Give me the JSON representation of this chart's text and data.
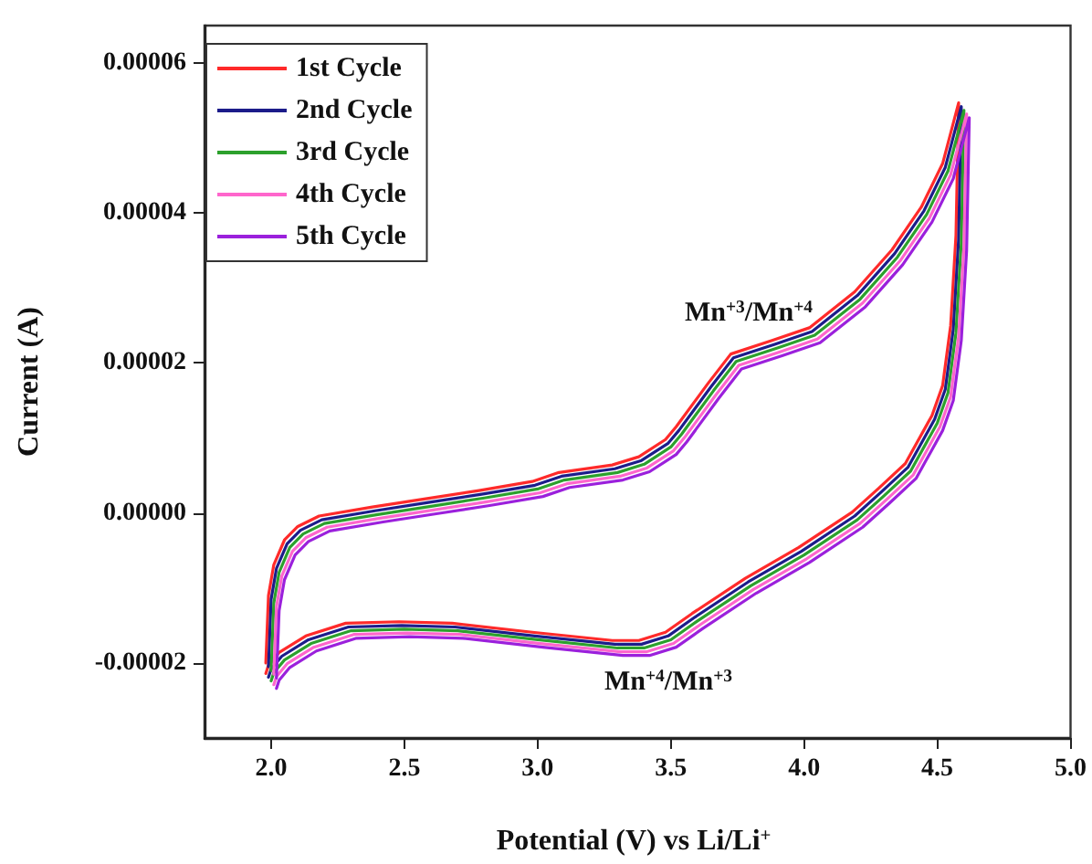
{
  "chart_data": {
    "type": "line",
    "xlabel": "Potential (V) vs Li/Li$^{+}$",
    "ylabel": "Current (A)",
    "xlim": [
      1.75,
      5.0
    ],
    "ylim": [
      -3e-05,
      6.5e-05
    ],
    "xticks": [
      {
        "value": 2.0,
        "label": "2.0"
      },
      {
        "value": 2.5,
        "label": "2.5"
      },
      {
        "value": 3.0,
        "label": "3.0"
      },
      {
        "value": 3.5,
        "label": "3.5"
      },
      {
        "value": 4.0,
        "label": "4.0"
      },
      {
        "value": 4.5,
        "label": "4.5"
      },
      {
        "value": 5.0,
        "label": "5.0"
      }
    ],
    "yticks": [
      {
        "value": -2e-05,
        "label": "-0.00002"
      },
      {
        "value": 0,
        "label": "0.00000"
      },
      {
        "value": 2e-05,
        "label": "0.00002"
      },
      {
        "value": 4e-05,
        "label": "0.00004"
      },
      {
        "value": 6e-05,
        "label": "0.00006"
      }
    ],
    "grid": false,
    "legend": "top left",
    "marker": "none",
    "line_style": "solid",
    "annotations": [
      "Mn$^{+3}$/Mn$^{+4}$",
      "Mn$^{+4}$/Mn$^{+3}$"
    ],
    "series": [
      {
        "name": "1st Cycle",
        "color": "#ff2a2a",
        "x": [
          1.98,
          1.99,
          2.01,
          2.05,
          2.1,
          2.18,
          2.38,
          2.58,
          2.78,
          2.98,
          3.08,
          3.28,
          3.38,
          3.48,
          3.52,
          3.64,
          3.725,
          3.88,
          4.02,
          4.19,
          4.33,
          4.44,
          4.52,
          4.58,
          4.57,
          4.55,
          4.52,
          4.48,
          4.38,
          4.28,
          4.18,
          3.98,
          3.78,
          3.58,
          3.48,
          3.38,
          3.28,
          2.98,
          2.68,
          2.48,
          2.28,
          2.13,
          2.03,
          1.99,
          1.98
        ],
        "values": [
          -2e-05,
          -1.1e-05,
          -6.9e-06,
          -3.6e-06,
          -1.8e-06,
          -4e-07,
          8e-07,
          1.9e-06,
          3e-06,
          4.2e-06,
          5.4e-06,
          6.4e-06,
          7.5e-06,
          9.8e-06,
          1.15e-05,
          1.73e-05,
          2.12e-05,
          2.3e-05,
          2.47e-05,
          2.95e-05,
          3.51e-05,
          4.08e-05,
          4.66e-05,
          5.47e-05,
          3.7e-05,
          2.5e-05,
          1.7e-05,
          1.3e-05,
          6.6e-06,
          3.3e-06,
          1e-07,
          -4.6e-06,
          -8.7e-06,
          -1.34e-05,
          -1.59e-05,
          -1.7e-05,
          -1.7e-05,
          -1.59e-05,
          -1.47e-05,
          -1.45e-05,
          -1.47e-05,
          -1.64e-05,
          -1.86e-05,
          -2.03e-05,
          -2.14e-05
        ]
      },
      {
        "name": "2nd Cycle",
        "color": "#1c1c8a",
        "x": [
          1.99,
          2.0,
          2.02,
          2.06,
          2.11,
          2.19,
          2.39,
          2.59,
          2.79,
          2.99,
          3.09,
          3.29,
          3.39,
          3.49,
          3.53,
          3.65,
          3.735,
          3.89,
          4.03,
          4.2,
          4.34,
          4.45,
          4.53,
          4.59,
          4.58,
          4.56,
          4.53,
          4.49,
          4.39,
          4.29,
          4.19,
          3.99,
          3.79,
          3.59,
          3.49,
          3.39,
          3.29,
          2.99,
          2.69,
          2.49,
          2.29,
          2.14,
          2.04,
          2.0,
          1.99
        ],
        "values": [
          -2.05e-05,
          -1.15e-05,
          -7.4e-06,
          -4.1e-06,
          -2.3e-06,
          -9e-07,
          3e-07,
          1.4e-06,
          2.5e-06,
          3.7e-06,
          4.9e-06,
          5.9e-06,
          7e-06,
          9.3e-06,
          1.1e-05,
          1.68e-05,
          2.07e-05,
          2.25e-05,
          2.42e-05,
          2.9e-05,
          3.46e-05,
          4.03e-05,
          4.61e-05,
          5.42e-05,
          3.65e-05,
          2.45e-05,
          1.65e-05,
          1.25e-05,
          6.1e-06,
          2.8e-06,
          -4e-07,
          -5.1e-06,
          -9.2e-06,
          -1.39e-05,
          -1.64e-05,
          -1.75e-05,
          -1.75e-05,
          -1.64e-05,
          -1.52e-05,
          -1.5e-05,
          -1.52e-05,
          -1.69e-05,
          -1.91e-05,
          -2.08e-05,
          -2.19e-05
        ]
      },
      {
        "name": "3rd Cycle",
        "color": "#2ca02c",
        "x": [
          2.0,
          2.01,
          2.03,
          2.07,
          2.12,
          2.2,
          2.4,
          2.6,
          2.8,
          3.0,
          3.1,
          3.3,
          3.4,
          3.5,
          3.54,
          3.66,
          3.745,
          3.9,
          4.04,
          4.21,
          4.35,
          4.46,
          4.54,
          4.6,
          4.59,
          4.57,
          4.54,
          4.5,
          4.4,
          4.3,
          4.2,
          4.0,
          3.8,
          3.6,
          3.5,
          3.4,
          3.3,
          3.0,
          2.7,
          2.5,
          2.3,
          2.15,
          2.05,
          2.01,
          2.0
        ],
        "values": [
          -2.1e-05,
          -1.2e-05,
          -7.9e-06,
          -4.6e-06,
          -2.8e-06,
          -1.4e-06,
          -2e-07,
          9e-07,
          2e-06,
          3.2e-06,
          4.4e-06,
          5.4e-06,
          6.5e-06,
          8.8e-06,
          1.05e-05,
          1.63e-05,
          2.02e-05,
          2.2e-05,
          2.37e-05,
          2.85e-05,
          3.41e-05,
          3.98e-05,
          4.56e-05,
          5.37e-05,
          3.6e-05,
          2.4e-05,
          1.6e-05,
          1.2e-05,
          5.6e-06,
          2.3e-06,
          -9e-07,
          -5.6e-06,
          -9.7e-06,
          -1.44e-05,
          -1.69e-05,
          -1.8e-05,
          -1.8e-05,
          -1.69e-05,
          -1.57e-05,
          -1.55e-05,
          -1.57e-05,
          -1.74e-05,
          -1.96e-05,
          -2.13e-05,
          -2.24e-05
        ]
      },
      {
        "name": "4th Cycle",
        "color": "#ff66cc",
        "x": [
          2.01,
          2.02,
          2.04,
          2.08,
          2.13,
          2.21,
          2.41,
          2.61,
          2.81,
          3.01,
          3.11,
          3.31,
          3.41,
          3.51,
          3.55,
          3.67,
          3.755,
          3.91,
          4.05,
          4.22,
          4.36,
          4.47,
          4.55,
          4.61,
          4.6,
          4.58,
          4.55,
          4.51,
          4.41,
          4.31,
          4.21,
          4.01,
          3.81,
          3.61,
          3.51,
          3.41,
          3.31,
          3.01,
          2.71,
          2.51,
          2.31,
          2.16,
          2.06,
          2.02,
          2.01
        ],
        "values": [
          -2.15e-05,
          -1.25e-05,
          -8.4e-06,
          -5.1e-06,
          -3.3e-06,
          -1.9e-06,
          -7e-07,
          4e-07,
          1.5e-06,
          2.7e-06,
          3.9e-06,
          4.9e-06,
          6e-06,
          8.3e-06,
          1e-05,
          1.58e-05,
          1.97e-05,
          2.15e-05,
          2.32e-05,
          2.8e-05,
          3.36e-05,
          3.93e-05,
          4.51e-05,
          5.32e-05,
          3.55e-05,
          2.35e-05,
          1.55e-05,
          1.15e-05,
          5.1e-06,
          1.8e-06,
          -1.4e-06,
          -6.1e-06,
          -1.02e-05,
          -1.49e-05,
          -1.74e-05,
          -1.85e-05,
          -1.85e-05,
          -1.74e-05,
          -1.62e-05,
          -1.6e-05,
          -1.62e-05,
          -1.79e-05,
          -2.01e-05,
          -2.18e-05,
          -2.29e-05
        ]
      },
      {
        "name": "5th Cycle",
        "color": "#9b20dc",
        "x": [
          2.02,
          2.03,
          2.05,
          2.09,
          2.14,
          2.22,
          2.42,
          2.62,
          2.82,
          3.02,
          3.12,
          3.32,
          3.42,
          3.52,
          3.56,
          3.68,
          3.765,
          3.92,
          4.06,
          4.23,
          4.37,
          4.48,
          4.56,
          4.62,
          4.61,
          4.59,
          4.56,
          4.52,
          4.42,
          4.32,
          4.22,
          4.02,
          3.82,
          3.62,
          3.52,
          3.42,
          3.32,
          3.02,
          2.72,
          2.52,
          2.32,
          2.17,
          2.07,
          2.03,
          2.02
        ],
        "values": [
          -2.2e-05,
          -1.3e-05,
          -8.9e-06,
          -5.6e-06,
          -3.8e-06,
          -2.4e-06,
          -1.2e-06,
          -1e-07,
          1e-06,
          2.2e-06,
          3.4e-06,
          4.4e-06,
          5.5e-06,
          7.8e-06,
          9.5e-06,
          1.53e-05,
          1.92e-05,
          2.1e-05,
          2.27e-05,
          2.75e-05,
          3.31e-05,
          3.88e-05,
          4.46e-05,
          5.27e-05,
          3.5e-05,
          2.3e-05,
          1.5e-05,
          1.1e-05,
          4.6e-06,
          1.3e-06,
          -1.9e-06,
          -6.6e-06,
          -1.07e-05,
          -1.54e-05,
          -1.79e-05,
          -1.9e-05,
          -1.9e-05,
          -1.79e-05,
          -1.67e-05,
          -1.65e-05,
          -1.67e-05,
          -1.84e-05,
          -2.06e-05,
          -2.23e-05,
          -2.34e-05
        ]
      }
    ]
  }
}
